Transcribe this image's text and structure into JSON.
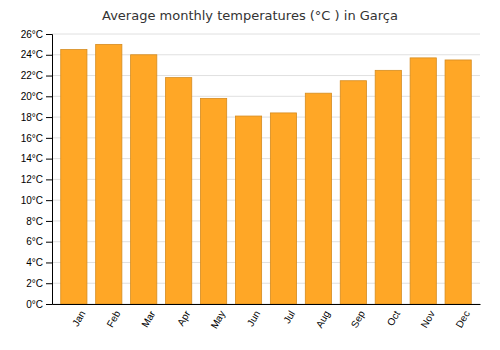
{
  "chart_data": {
    "type": "bar",
    "title": "Average monthly temperatures (°C ) in Garça",
    "categories": [
      "Jan",
      "Feb",
      "Mar",
      "Apr",
      "May",
      "Jun",
      "Jul",
      "Aug",
      "Sep",
      "Oct",
      "Nov",
      "Dec"
    ],
    "values": [
      24.5,
      25.0,
      24.0,
      21.8,
      19.8,
      18.1,
      18.4,
      20.3,
      21.5,
      22.5,
      23.7,
      23.5
    ],
    "color": "#FFA726",
    "ylim": [
      0,
      26
    ],
    "yticks": [
      {
        "value": 0,
        "label": "0°C"
      },
      {
        "value": 2,
        "label": "2°C"
      },
      {
        "value": 4,
        "label": "4°C"
      },
      {
        "value": 6,
        "label": "6°C"
      },
      {
        "value": 8,
        "label": "8°C"
      },
      {
        "value": 10,
        "label": "10°C"
      },
      {
        "value": 12,
        "label": "12°C"
      },
      {
        "value": 14,
        "label": "14°C"
      },
      {
        "value": 16,
        "label": "16°C"
      },
      {
        "value": 18,
        "label": "18°C"
      },
      {
        "value": 20,
        "label": "20°C"
      },
      {
        "value": 22,
        "label": "22°C"
      },
      {
        "value": 24,
        "label": "24°C"
      },
      {
        "value": 26,
        "label": "26°C"
      }
    ],
    "grid": true
  }
}
